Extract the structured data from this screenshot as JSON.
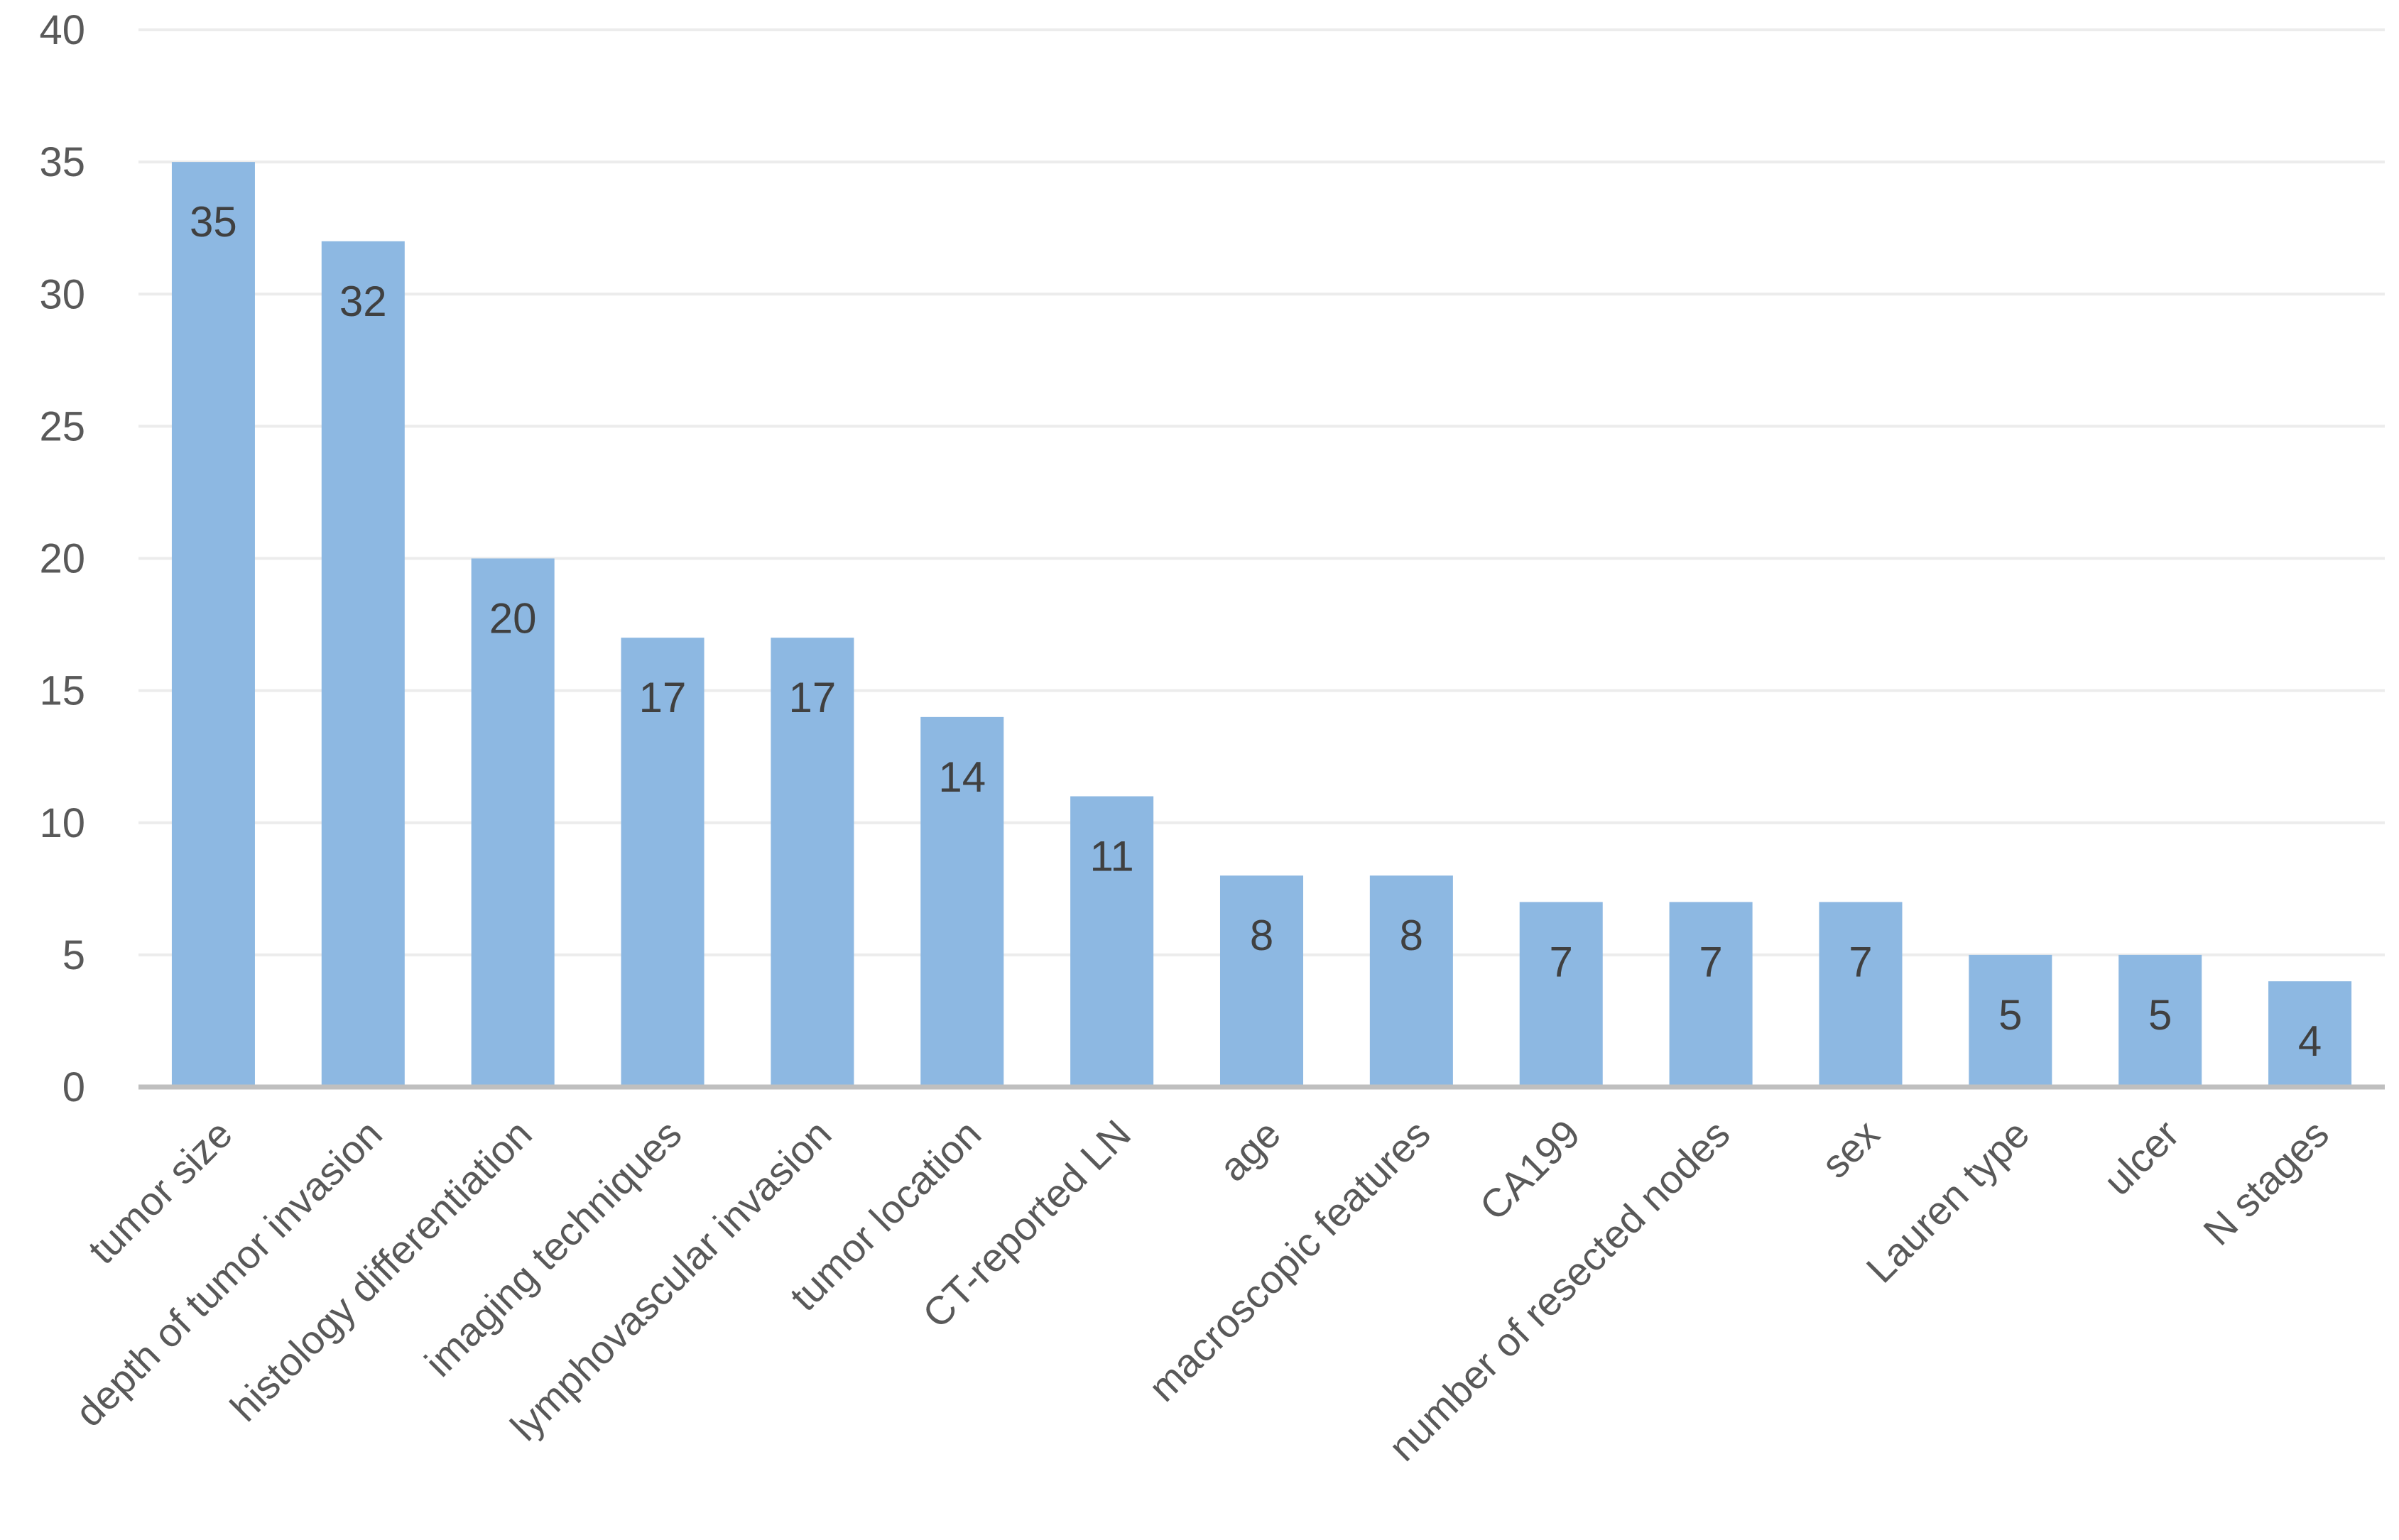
{
  "chart_data": {
    "type": "bar",
    "title": "",
    "xlabel": "",
    "ylabel": "",
    "categories": [
      "tumor size",
      "depth of tumor invasion",
      "histology differentiation",
      "imaging techniques",
      "lymphovascular invasion",
      "tumor location",
      "CT-reported LN",
      "age",
      "macroscopic features",
      "CA199",
      "number of resected nodes",
      "sex",
      "Lauren type",
      "ulcer",
      "N stages"
    ],
    "values": [
      35,
      32,
      20,
      17,
      17,
      14,
      11,
      8,
      8,
      7,
      7,
      7,
      5,
      5,
      4
    ],
    "ylim": [
      0,
      40
    ],
    "yticks": [
      0,
      5,
      10,
      15,
      20,
      25,
      30,
      35,
      40
    ],
    "grid": true,
    "legend": "none",
    "data_labels": true,
    "x_tick_rotation_deg": -45,
    "colors": {
      "bar": "#8DB8E2",
      "axis": "#BFBFBF",
      "grid": "#ECECEC",
      "tick_text": "#595959",
      "data_label_text": "#404040"
    }
  }
}
